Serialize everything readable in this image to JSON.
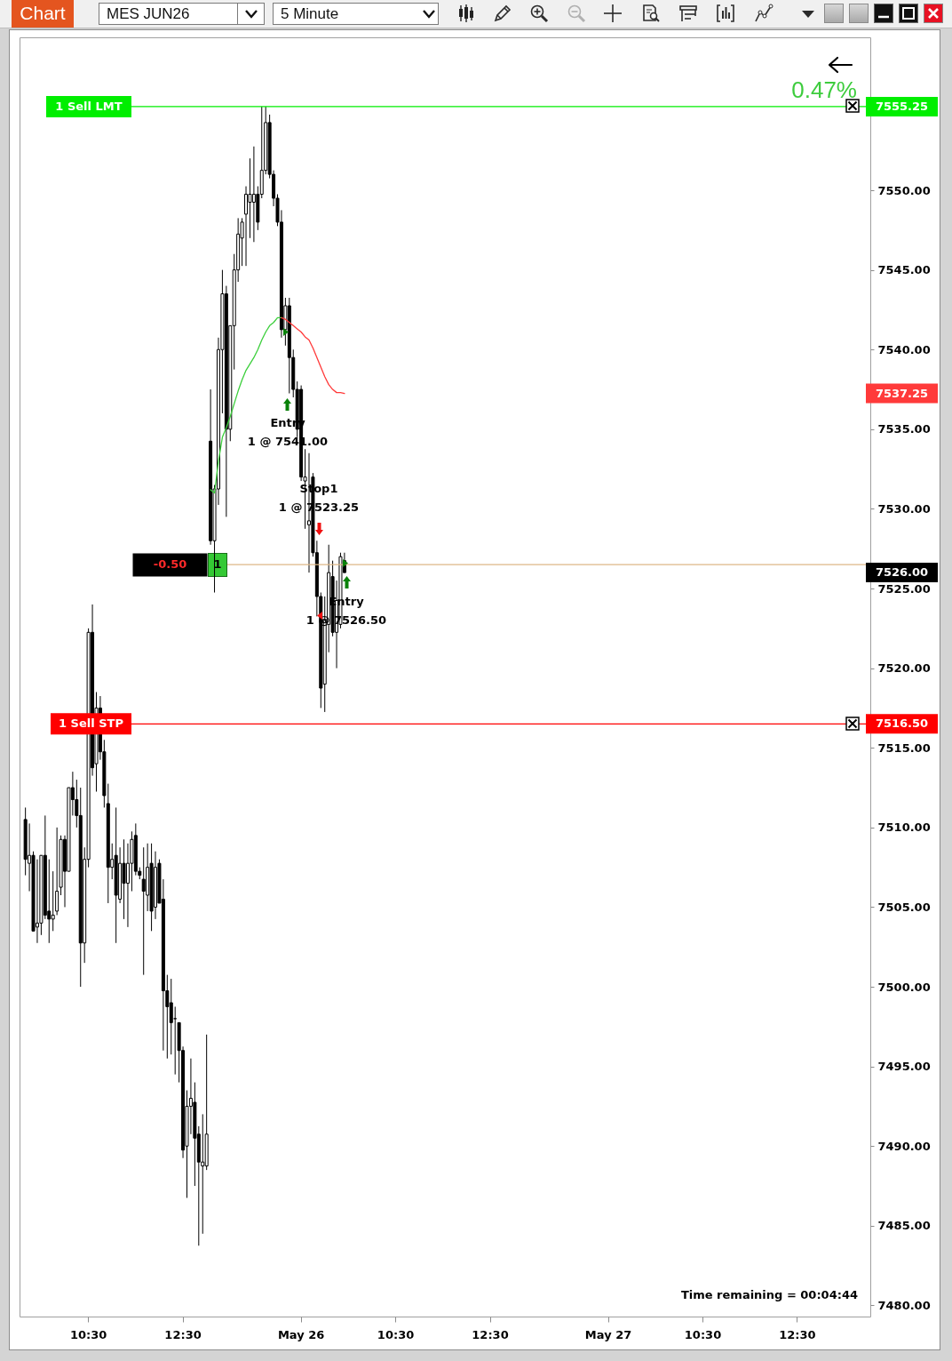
{
  "chart_data": {
    "type": "candlestick",
    "title": "MES JUN26",
    "subtitle": "5 Minute",
    "categories": [
      null,
      null,
      null,
      null,
      null,
      null,
      null,
      null,
      null,
      null,
      null,
      null,
      null,
      null,
      null,
      null,
      "10:30",
      null,
      null,
      null,
      null,
      null,
      null,
      null,
      null,
      null,
      null,
      null,
      null,
      null,
      null,
      null,
      null,
      null,
      null,
      null,
      null,
      null,
      null,
      null,
      "12:30",
      null,
      null,
      null,
      null,
      null,
      null,
      null,
      null,
      null,
      null,
      null,
      null,
      null,
      null,
      null,
      null,
      null,
      null,
      null,
      null,
      null,
      null,
      null,
      null,
      null,
      null,
      null,
      null,
      null,
      "May 26",
      null,
      null,
      null,
      null,
      null,
      null,
      null,
      null,
      null,
      null,
      null,
      null,
      null,
      null,
      null,
      null,
      null,
      null,
      null,
      null,
      null,
      null,
      null,
      "10:30",
      null,
      null,
      null,
      null,
      null,
      null,
      null,
      null,
      null,
      null,
      null,
      null,
      null,
      null,
      null,
      null,
      null,
      null,
      null,
      null,
      null,
      null,
      null,
      "12:30",
      null,
      null,
      null,
      null,
      null,
      null,
      null,
      null,
      null,
      null,
      null,
      null,
      null,
      null,
      null,
      null,
      null,
      null,
      null,
      null,
      null,
      null,
      null,
      null,
      null,
      null,
      null,
      null,
      null,
      "May 27",
      null,
      null,
      null,
      null,
      null,
      null,
      null,
      null,
      null,
      null,
      null,
      null,
      null,
      null,
      null,
      null,
      null,
      null,
      null,
      null,
      null,
      null,
      null,
      "10:30",
      null,
      null,
      null,
      null,
      null,
      null,
      null,
      null,
      null,
      null,
      null,
      null,
      null,
      null,
      null,
      null,
      null,
      null,
      null,
      null,
      null,
      null,
      null,
      "12:30",
      null,
      null,
      null,
      null,
      null,
      null,
      null,
      null,
      null,
      null,
      null,
      null,
      null,
      null,
      null,
      null,
      null
    ],
    "ohlc": [
      [
        7510.5,
        7511.25,
        7507,
        7508
      ],
      [
        7507.75,
        7510.25,
        7506,
        7508.25
      ],
      [
        7508.25,
        7508.5,
        7503.5,
        7503.5
      ],
      [
        7503.75,
        7508,
        7502.75,
        7504
      ],
      [
        7504,
        7508.25,
        7503.25,
        7508.25
      ],
      [
        7508.25,
        7510.75,
        7504.25,
        7504.5
      ],
      [
        7504.75,
        7508,
        7502.75,
        7504.25
      ],
      [
        7504.25,
        7507.25,
        7503.5,
        7504.5
      ],
      [
        7504.75,
        7510,
        7504.5,
        7506
      ],
      [
        7506.25,
        7509.5,
        7505.75,
        7509.25
      ],
      [
        7509.25,
        7509.5,
        7505,
        7507.25
      ],
      [
        7507.25,
        7512.5,
        7507.25,
        7512.5
      ],
      [
        7512.5,
        7513.5,
        7510.75,
        7511.75
      ],
      [
        7511.75,
        7513,
        7510,
        7510.75
      ],
      [
        7510.75,
        7512.5,
        7500,
        7502.75
      ],
      [
        7502.75,
        7508.75,
        7501.5,
        7508
      ],
      [
        7508,
        7522.5,
        7507.5,
        7522.25
      ],
      [
        7522.25,
        7524,
        7513.25,
        7513.75
      ],
      [
        7514,
        7518.5,
        7512.25,
        7517.5
      ],
      [
        7517.5,
        7518.25,
        7514.25,
        7514.75
      ],
      [
        7514.75,
        7515.5,
        7511.25,
        7512
      ],
      [
        7511.5,
        7512.75,
        7505.25,
        7507.5
      ],
      [
        7507.5,
        7509,
        7506.75,
        7508
      ],
      [
        7508.25,
        7511.25,
        7502.75,
        7505.75
      ],
      [
        7505.5,
        7508.75,
        7505.25,
        7507.75
      ],
      [
        7507.75,
        7509.25,
        7504.25,
        7506.5
      ],
      [
        7506.5,
        7509,
        7503.75,
        7507.75
      ],
      [
        7507.75,
        7509.75,
        7506,
        7509.25
      ],
      [
        7509.5,
        7510.25,
        7507,
        7507.25
      ],
      [
        7507.25,
        7507.5,
        7506.75,
        7507
      ],
      [
        7506.75,
        7508.75,
        7500.75,
        7506
      ],
      [
        7505.75,
        7509,
        7504.75,
        7507.5
      ],
      [
        7507.75,
        7509,
        7503.5,
        7504.75
      ],
      [
        7505,
        7508.5,
        7504.25,
        7507.5
      ],
      [
        7507.75,
        7508,
        7505.25,
        7505.25
      ],
      [
        7505.5,
        7506.75,
        7496,
        7499.75
      ],
      [
        7499.75,
        7500.75,
        7495.5,
        7498.75
      ],
      [
        7499,
        7500.5,
        7495.75,
        7497.75
      ],
      [
        7498,
        7498.75,
        7494.5,
        7498
      ],
      [
        7497.75,
        7497.75,
        7494,
        7496
      ],
      [
        7496,
        7496.25,
        7489.25,
        7489.75
      ],
      [
        7490,
        7493.5,
        7486.75,
        7492.5
      ],
      [
        7492.5,
        7495.5,
        7490.75,
        7493
      ],
      [
        7492.75,
        7494,
        7487.5,
        7490.5
      ],
      [
        7490.75,
        7491.25,
        7483.75,
        7489
      ],
      [
        7488.75,
        7492,
        7484.5,
        7489
      ],
      [
        7488.75,
        7497,
        7488.5,
        7490.75
      ],
      [
        7534.25,
        7537.5,
        7527.75,
        7528
      ],
      [
        7528,
        7531.5,
        7524.75,
        7531.25
      ],
      [
        7531.25,
        7540.75,
        7530.25,
        7540
      ],
      [
        7540,
        7545,
        7536,
        7543.5
      ],
      [
        7543.5,
        7544,
        7529.5,
        7535
      ],
      [
        7535,
        7541.5,
        7534.25,
        7541.5
      ],
      [
        7541.5,
        7546,
        7538.75,
        7545
      ],
      [
        7545,
        7548.25,
        7544.25,
        7547.25
      ],
      [
        7547,
        7548.25,
        7545.25,
        7548
      ],
      [
        7548.5,
        7550.25,
        7545.25,
        7549.75
      ],
      [
        7549.25,
        7552,
        7547,
        7549.75
      ],
      [
        7549.25,
        7552.75,
        7546.75,
        7549.75
      ],
      [
        7549.75,
        7550.25,
        7547.5,
        7548
      ],
      [
        7549.75,
        7555.25,
        7549.5,
        7551.25
      ],
      [
        7551.25,
        7555.25,
        7551,
        7554.25
      ],
      [
        7554.25,
        7554.75,
        7550.75,
        7551
      ],
      [
        7551,
        7551.25,
        7549,
        7549.5
      ],
      [
        7549.5,
        7549.75,
        7547.75,
        7548
      ],
      [
        7548,
        7548.75,
        7540.75,
        7541.25
      ],
      [
        7541.25,
        7543.25,
        7540.25,
        7542.75
      ],
      [
        7542.75,
        7543.25,
        7537.25,
        7539.5
      ],
      [
        7539.5,
        7540,
        7537,
        7537.5
      ],
      [
        7537.5,
        7538,
        7534.5,
        7535
      ],
      [
        7537.5,
        7537.75,
        7531.75,
        7532
      ],
      [
        7531.75,
        7533.75,
        7528.75,
        7532
      ],
      [
        7529,
        7533.5,
        7526,
        7529.25
      ],
      [
        7532,
        7532.25,
        7527,
        7527.25
      ],
      [
        7527.25,
        7528,
        7523.25,
        7524.5
      ],
      [
        7524.5,
        7524.75,
        7517.5,
        7518.75
      ],
      [
        7519,
        7524.5,
        7517.25,
        7523
      ],
      [
        7522.75,
        7527.75,
        7521,
        7526
      ],
      [
        7525.75,
        7526.75,
        7522,
        7522.25
      ],
      [
        7522.25,
        7525.5,
        7520,
        7524.25
      ],
      [
        7522.75,
        7527.25,
        7522.5,
        7527
      ],
      [
        7526.75,
        7527.25,
        7526,
        7526
      ],
      null,
      null,
      null,
      null,
      null,
      null,
      null,
      null,
      null,
      null,
      null,
      null,
      null,
      null,
      null,
      null,
      null,
      null,
      null,
      null,
      null,
      null,
      null,
      null,
      null,
      null,
      null,
      null,
      null,
      null,
      null,
      null,
      null,
      null,
      null,
      null,
      null,
      null,
      null,
      null,
      null,
      null,
      null,
      null,
      null,
      null,
      null,
      null,
      null,
      null,
      null,
      null,
      null,
      null,
      null,
      null,
      null,
      null,
      null,
      null,
      null,
      null,
      null,
      null,
      null,
      null,
      null,
      null,
      null,
      null,
      null,
      null,
      null,
      null,
      null,
      null,
      null,
      null,
      null,
      null,
      null,
      null,
      null,
      null,
      null,
      null,
      null,
      null,
      null,
      null,
      null,
      null,
      null,
      null,
      null,
      null,
      null,
      null,
      null,
      null,
      null,
      null,
      null,
      null,
      null,
      null,
      null,
      null,
      null,
      null,
      null,
      null,
      null,
      null,
      null,
      null,
      null,
      null,
      null,
      null,
      null,
      null,
      null,
      null,
      null,
      null,
      null,
      null,
      null,
      null,
      null,
      null
    ],
    "series": [
      {
        "type": "line",
        "color": "#3ccf3c",
        "values": [
          null,
          null,
          null,
          null,
          null,
          null,
          null,
          null,
          null,
          null,
          null,
          null,
          null,
          null,
          null,
          null,
          null,
          null,
          null,
          null,
          null,
          null,
          null,
          null,
          null,
          null,
          null,
          null,
          null,
          null,
          null,
          null,
          null,
          null,
          null,
          null,
          null,
          null,
          null,
          null,
          null,
          null,
          null,
          null,
          null,
          null,
          null,
          7531.2,
          7531.0,
          7533.0,
          7534.5,
          7535.1,
          7535.8,
          7536.6,
          7537.4,
          7538.1,
          7538.7,
          7539.1,
          7539.5,
          7540.0,
          7540.6,
          7541.1,
          7541.5,
          7541.7,
          7542.0,
          7542.0,
          null,
          null,
          null,
          null,
          null,
          null,
          null,
          null,
          null,
          null,
          null,
          null,
          null,
          null,
          null,
          null,
          null,
          null,
          null,
          null,
          null,
          null,
          null,
          null,
          null,
          null,
          null,
          null,
          null,
          null,
          null,
          null,
          null,
          null,
          null,
          null,
          null,
          null,
          null,
          null,
          null,
          null,
          null,
          null,
          null,
          null,
          null,
          null,
          null,
          null,
          null,
          null,
          null,
          null,
          null,
          null,
          null,
          null,
          null,
          null,
          null,
          null,
          null,
          null,
          null,
          null,
          null,
          null,
          null,
          null,
          null,
          null,
          null,
          null,
          null,
          null,
          null,
          null,
          null,
          null,
          null,
          null,
          null,
          null,
          null,
          null,
          null,
          null,
          null,
          null,
          null,
          null,
          null,
          null,
          null,
          null,
          null,
          null,
          null,
          null,
          null,
          null,
          null,
          null,
          null,
          null,
          null,
          null,
          null,
          null,
          null,
          null,
          null,
          null,
          null,
          null,
          null,
          null,
          null,
          null,
          null,
          null,
          null,
          null,
          null,
          null,
          null,
          null,
          null,
          null,
          null,
          null,
          null,
          null,
          null,
          null,
          null,
          null,
          null,
          null,
          null,
          null,
          null,
          null,
          null,
          null,
          null,
          null
        ]
      },
      {
        "type": "line",
        "color": "#ff3a3a",
        "values": [
          null,
          null,
          null,
          null,
          null,
          null,
          null,
          null,
          null,
          null,
          null,
          null,
          null,
          null,
          null,
          null,
          null,
          null,
          null,
          null,
          null,
          null,
          null,
          null,
          null,
          null,
          null,
          null,
          null,
          null,
          null,
          null,
          null,
          null,
          null,
          null,
          null,
          null,
          null,
          null,
          null,
          null,
          null,
          null,
          null,
          null,
          null,
          null,
          null,
          null,
          null,
          null,
          null,
          null,
          null,
          null,
          null,
          null,
          null,
          null,
          null,
          null,
          null,
          null,
          null,
          7542.0,
          7541.9,
          7541.7,
          7541.5,
          7541.3,
          7541.1,
          7540.8,
          7540.6,
          7540.1,
          7539.5,
          7538.9,
          7538.3,
          7537.8,
          7537.5,
          7537.3,
          7537.3,
          7537.25,
          null,
          null,
          null,
          null,
          null,
          null,
          null,
          null,
          null,
          null,
          null,
          null,
          null,
          null,
          null,
          null,
          null,
          null,
          null,
          null,
          null,
          null,
          null,
          null,
          null,
          null,
          null,
          null,
          null,
          null,
          null,
          null,
          null,
          null,
          null,
          null,
          null,
          null,
          null,
          null,
          null,
          null,
          null,
          null,
          null,
          null,
          null,
          null,
          null,
          null,
          null,
          null,
          null,
          null,
          null,
          null,
          null,
          null,
          null,
          null,
          null,
          null,
          null,
          null,
          null,
          null,
          null,
          null,
          null,
          null,
          null,
          null,
          null,
          null,
          null,
          null,
          null,
          null,
          null,
          null,
          null,
          null,
          null,
          null,
          null,
          null,
          null,
          null,
          null,
          null,
          null,
          null,
          null,
          null,
          null,
          null,
          null,
          null,
          null,
          null,
          null,
          null,
          null,
          null,
          null,
          null,
          null,
          null,
          null,
          null,
          null,
          null,
          null,
          null,
          null,
          null,
          null,
          null,
          null,
          null,
          null,
          null,
          null,
          null,
          null,
          null,
          null,
          null,
          null,
          null,
          null,
          null
        ]
      }
    ],
    "ylim": [
      7479.3,
      7559.6
    ],
    "yticks": [
      {
        "value": 7480,
        "label": "7480.00"
      },
      {
        "value": 7485,
        "label": "7485.00"
      },
      {
        "value": 7490,
        "label": "7490.00"
      },
      {
        "value": 7495,
        "label": "7495.00"
      },
      {
        "value": 7500,
        "label": "7500.00"
      },
      {
        "value": 7505,
        "label": "7505.00"
      },
      {
        "value": 7510,
        "label": "7510.00"
      },
      {
        "value": 7515,
        "label": "7515.00"
      },
      {
        "value": 7520,
        "label": "7520.00"
      },
      {
        "value": 7525,
        "label": "7525.00"
      },
      {
        "value": 7530,
        "label": "7530.00"
      },
      {
        "value": 7535,
        "label": "7535.00"
      },
      {
        "value": 7540,
        "label": "7540.00"
      },
      {
        "value": 7545,
        "label": "7545.00"
      },
      {
        "value": 7550,
        "label": "7550.00"
      }
    ],
    "ref_lines": [
      {
        "axis": "y",
        "value": 7555.25,
        "label": "1 Sell LMT",
        "color": "#00ee00"
      },
      {
        "axis": "y",
        "value": 7516.5,
        "label": "1 Sell STP",
        "color": "#ff0000"
      },
      {
        "axis": "y",
        "value": 7526.5,
        "color": "#deb887"
      }
    ],
    "annotations": [
      "Chart",
      "0.47%",
      "Entry\n1 @ 7541.00",
      "Stop1\n1 @ 7523.25",
      "Entry\n1 @ 7526.50",
      "-0.50",
      "1",
      "Time remaining = 00:04:44",
      "7555.25",
      "7537.25",
      "7526.00",
      "7516.50"
    ]
  }
}
